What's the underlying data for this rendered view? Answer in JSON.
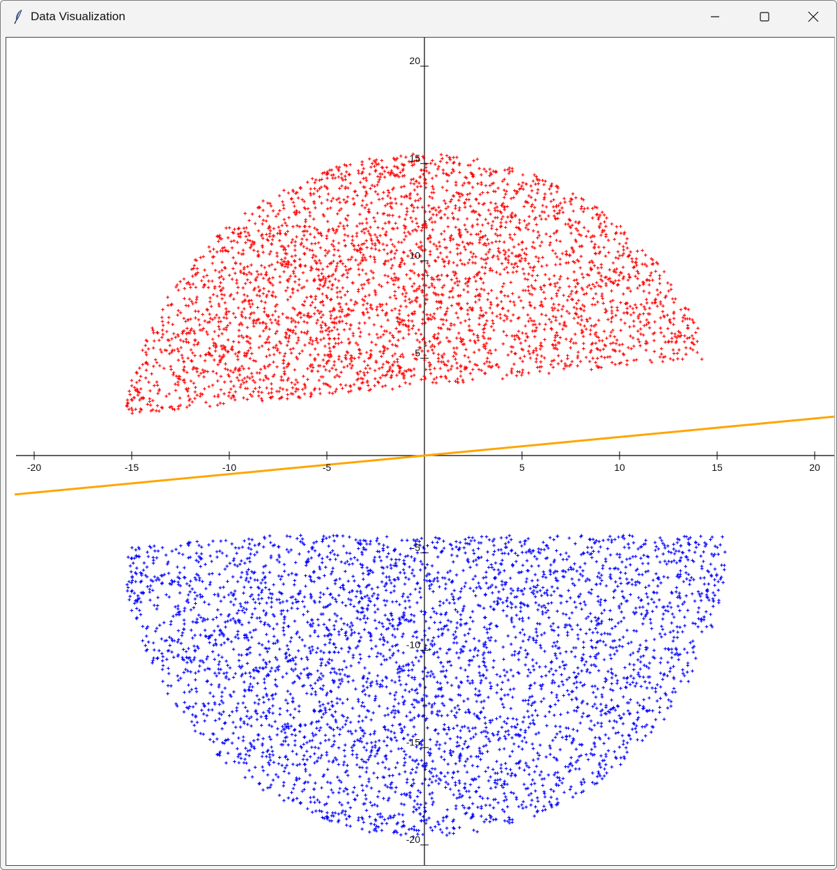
{
  "window": {
    "title": "Data Visualization",
    "icon": "feather-icon",
    "controls": [
      "minimize-icon",
      "maximize-icon",
      "close-icon"
    ]
  },
  "chart_data": {
    "type": "scatter",
    "title": "",
    "xlabel": "",
    "ylabel": "",
    "xlim": [
      -21,
      21
    ],
    "ylim": [
      -21.5,
      20.8
    ],
    "x_ticks": [
      -20,
      -15,
      -10,
      -5,
      5,
      10,
      15,
      20
    ],
    "y_ticks": [
      20,
      15,
      10,
      5,
      -5,
      -10,
      -15,
      -20
    ],
    "grid": false,
    "legend": "none",
    "series": [
      {
        "kind": "points",
        "color": "#ff0000",
        "marker": "+",
        "count_estimate": 4000,
        "shape": "upper half-disc",
        "center": [
          0,
          0
        ],
        "radius": 15.5,
        "lower_boundary_line": {
          "from": [
            -15.5,
            2.1
          ],
          "to": [
            15.2,
            5.0
          ]
        }
      },
      {
        "kind": "points",
        "color": "#0000ff",
        "marker": "+",
        "count_estimate": 4000,
        "shape": "lower half-disc",
        "center": [
          0,
          -4.1
        ],
        "radius": 15.5,
        "upper_boundary_line": {
          "from": [
            -15.0,
            -4.7
          ],
          "to": [
            15.5,
            -2.1
          ]
        }
      },
      {
        "kind": "line",
        "color": "#ffa500",
        "from": [
          -21,
          -2.0
        ],
        "to": [
          21,
          2.0
        ]
      }
    ]
  }
}
